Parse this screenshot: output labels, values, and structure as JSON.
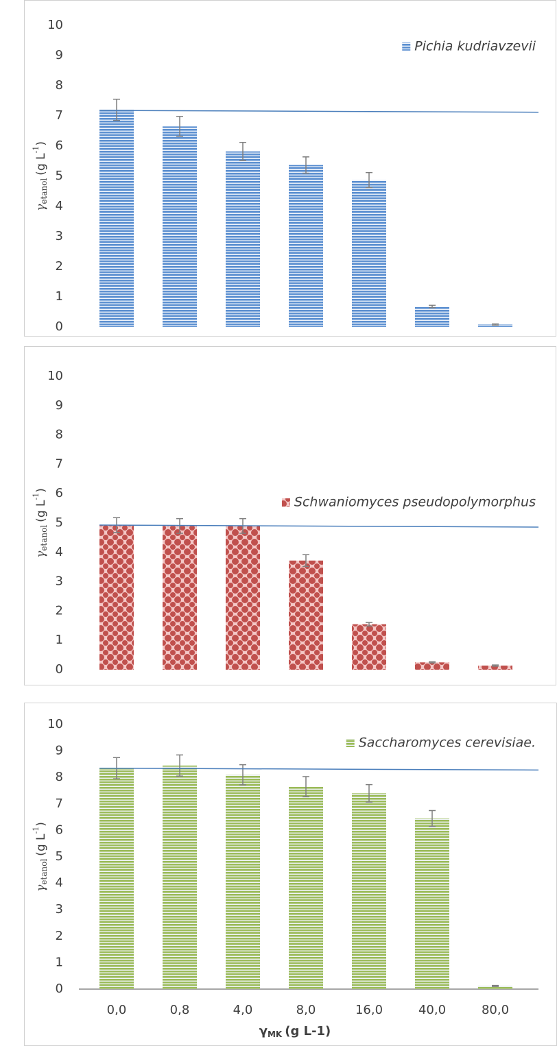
{
  "chart_data": [
    {
      "type": "bar",
      "y_label": [
        "γ",
        "etanol",
        "(g L",
        "-1",
        ")"
      ],
      "series": [
        {
          "name": "Pichia kudriavzevii",
          "color": "#5b8fd0",
          "pattern": "stripes",
          "values": [
            7.2,
            6.65,
            5.82,
            5.37,
            4.87,
            0.68,
            0.08
          ],
          "errors": [
            0.35,
            0.33,
            0.3,
            0.27,
            0.25,
            0.04,
            0.02
          ]
        }
      ],
      "trend_line": [
        7.18,
        7.12
      ],
      "trend_color": "#4a7ebb",
      "ylim": [
        0,
        10
      ],
      "yticks": [
        0,
        1,
        2,
        3,
        4,
        5,
        6,
        7,
        8,
        9,
        10
      ],
      "legend": "upper right"
    },
    {
      "type": "bar",
      "y_label": [
        "γ",
        "etanol",
        "(g L",
        "-1",
        ")"
      ],
      "series": [
        {
          "name": "Schwaniomyces pseudopolymorphus",
          "color": "#c0504d",
          "pattern": "dots",
          "values": [
            4.93,
            4.9,
            4.9,
            3.72,
            1.55,
            0.25,
            0.14
          ],
          "errors": [
            0.25,
            0.25,
            0.25,
            0.2,
            0.06,
            0.02,
            0.02
          ]
        }
      ],
      "trend_line": [
        4.93,
        4.86
      ],
      "trend_color": "#4a7ebb",
      "ylim": [
        0,
        10
      ],
      "yticks": [
        0,
        1,
        2,
        3,
        4,
        5,
        6,
        7,
        8,
        9,
        10
      ],
      "legend": "center right"
    },
    {
      "type": "bar",
      "y_label": [
        "γ",
        "etanol",
        "(g L",
        "-1",
        ")"
      ],
      "x_label": [
        "γ",
        "MK",
        "(g L-1)"
      ],
      "categories": [
        "0,0",
        "0,8",
        "4,0",
        "8,0",
        "16,0",
        "40,0",
        "80,0"
      ],
      "series": [
        {
          "name": "Saccharomyces cerevisiae.",
          "color": "#9bbb59",
          "pattern": "stripes",
          "values": [
            8.35,
            8.45,
            8.1,
            7.65,
            7.4,
            6.45,
            0.12
          ],
          "errors": [
            0.4,
            0.4,
            0.38,
            0.38,
            0.33,
            0.3,
            0.02
          ]
        }
      ],
      "trend_line": [
        8.35,
        8.28
      ],
      "trend_color": "#4a7ebb",
      "ylim": [
        0,
        10
      ],
      "yticks": [
        0,
        1,
        2,
        3,
        4,
        5,
        6,
        7,
        8,
        9,
        10
      ],
      "legend": "upper right"
    }
  ]
}
